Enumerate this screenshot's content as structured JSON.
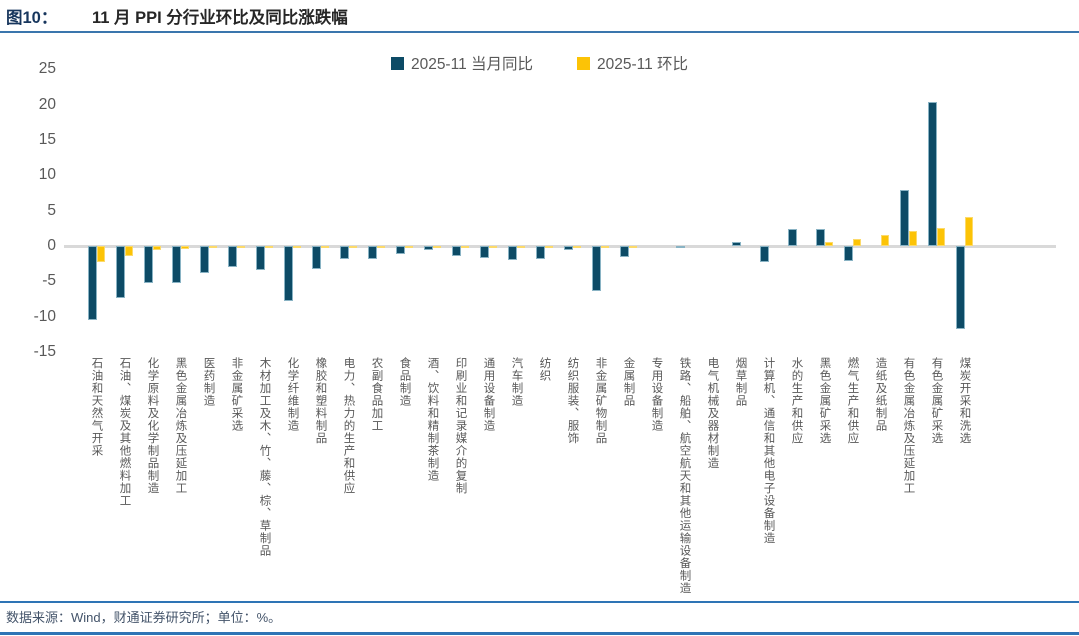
{
  "header": {
    "figure_label": "图10：",
    "title": "11 月 PPI 分行业环比及同比涨跌幅"
  },
  "footer": {
    "source": "数据来源：Wind，财通证券研究所；单位：%。"
  },
  "chart_data": {
    "type": "bar",
    "title": "11 月 PPI 分行业环比及同比涨跌幅",
    "unit": "%",
    "ylim": [
      -15,
      25
    ],
    "yticks": [
      25,
      20,
      15,
      10,
      5,
      0,
      -5,
      -10,
      -15
    ],
    "grid": false,
    "legend_position": "top-center",
    "categories": [
      "石油和天然气开采",
      "石油、煤炭及其他燃料加工",
      "化学原料及化学制品制造",
      "黑色金属冶炼及压延加工",
      "医药制造",
      "非金属矿采选",
      "木材加工及木、竹、藤、棕、草制品",
      "化学纤维制造",
      "橡胶和塑料制品",
      "电力、热力的生产和供应",
      "农副食品加工",
      "食品制造",
      "酒、饮料和精制茶制造",
      "印刷业和记录媒介的复制",
      "通用设备制造",
      "汽车制造",
      "纺织",
      "纺织服装、服饰",
      "非金属矿物制品",
      "金属制品",
      "专用设备制造",
      "铁路、船舶、航空航天和其他运输设备制造",
      "电气机械及器材制造",
      "烟草制品",
      "计算机、通信和其他电子设备制造",
      "水的生产和供应",
      "黑色金属矿采选",
      "燃气生产和供应",
      "造纸及纸制品",
      "有色金属冶炼及压延加工",
      "有色金属矿采选",
      "煤炭开采和洗选"
    ],
    "series": [
      {
        "name": "2025-11 当月同比",
        "color": "#0d4b66",
        "values": [
          -10.4,
          -7.3,
          -5.3,
          -5.2,
          -3.8,
          -3.0,
          -3.4,
          -7.8,
          -3.3,
          -1.9,
          -1.9,
          -1.1,
          -0.6,
          -1.4,
          -1.7,
          -2.0,
          -1.8,
          -0.5,
          -6.4,
          -1.6,
          0,
          -0.25,
          0,
          0.5,
          -2.2,
          2.4,
          2.4,
          -2.1,
          0,
          7.9,
          20.4,
          -11.8
        ]
      },
      {
        "name": "2025-11 环比",
        "color": "#fcc306",
        "values": [
          -2.3,
          -1.4,
          -0.6,
          -0.4,
          -0.3,
          -0.2,
          -0.3,
          -0.3,
          -0.35,
          -0.1,
          -0.15,
          -0.2,
          -0.1,
          -0.1,
          -0.1,
          -0.1,
          -0.15,
          -0.05,
          -0.1,
          -0.1,
          0,
          0,
          0,
          0,
          0,
          0,
          0.6,
          1.0,
          1.5,
          2.1,
          2.6,
          4.1
        ]
      }
    ]
  }
}
